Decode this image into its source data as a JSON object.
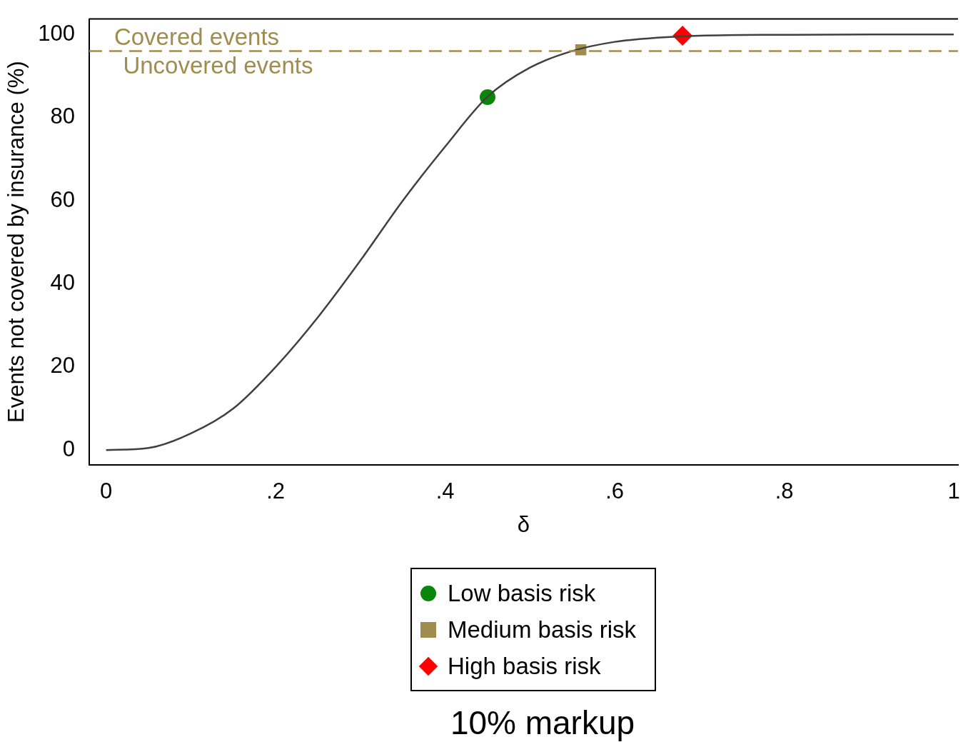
{
  "chart_data": {
    "type": "line",
    "xlabel": "δ",
    "ylabel": "Events not covered by insurance (%)",
    "xlim": [
      -0.02,
      1.005
    ],
    "xticks": [
      0,
      {
        "value": 0.2,
        "label": ".2"
      },
      {
        "value": 0.4,
        "label": ".4"
      },
      {
        "value": 0.6,
        "label": ".6"
      },
      {
        "value": 0.8,
        "label": ".8"
      },
      1
    ],
    "ylim": [
      -3.5,
      103.7
    ],
    "yticks": [
      0,
      20,
      40,
      60,
      80,
      100
    ],
    "grid": false,
    "legend": "bottom",
    "series": [
      {
        "color": "#404040",
        "marker": "none",
        "x": [
          0,
          0.05,
          0.1,
          0.15,
          0.2,
          0.25,
          0.3,
          0.35,
          0.4,
          0.45,
          0.5,
          0.55,
          0.6,
          0.65,
          0.7,
          0.8,
          0.9,
          1
        ],
        "values": [
          0,
          0.5,
          4,
          10,
          20,
          32,
          45.6,
          60,
          73,
          85,
          92,
          96,
          98.2,
          99.2,
          99.7,
          99.9,
          100,
          100
        ]
      },
      {
        "type": "scatter",
        "name": "Low basis risk",
        "color": "#0a870a",
        "marker": "circle",
        "x": [
          0.45
        ],
        "values": [
          84.9
        ]
      },
      {
        "type": "scatter",
        "name": "Medium basis risk",
        "color": "#a08c4e",
        "marker": "square",
        "x": [
          0.56
        ],
        "values": [
          96.3
        ]
      },
      {
        "type": "scatter",
        "name": "High basis risk",
        "color": "#ff0000",
        "marker": "diamond",
        "x": [
          0.68
        ],
        "values": [
          99.7
        ]
      }
    ],
    "ref_lines": [
      {
        "axis": "y",
        "value": 96,
        "label": "Covered events",
        "color": "#a08c4e",
        "line_style": "dashed"
      }
    ],
    "annotations": [
      {
        "text": "Uncovered events",
        "x": 0.02,
        "y": 96
      },
      "10% markup"
    ]
  }
}
